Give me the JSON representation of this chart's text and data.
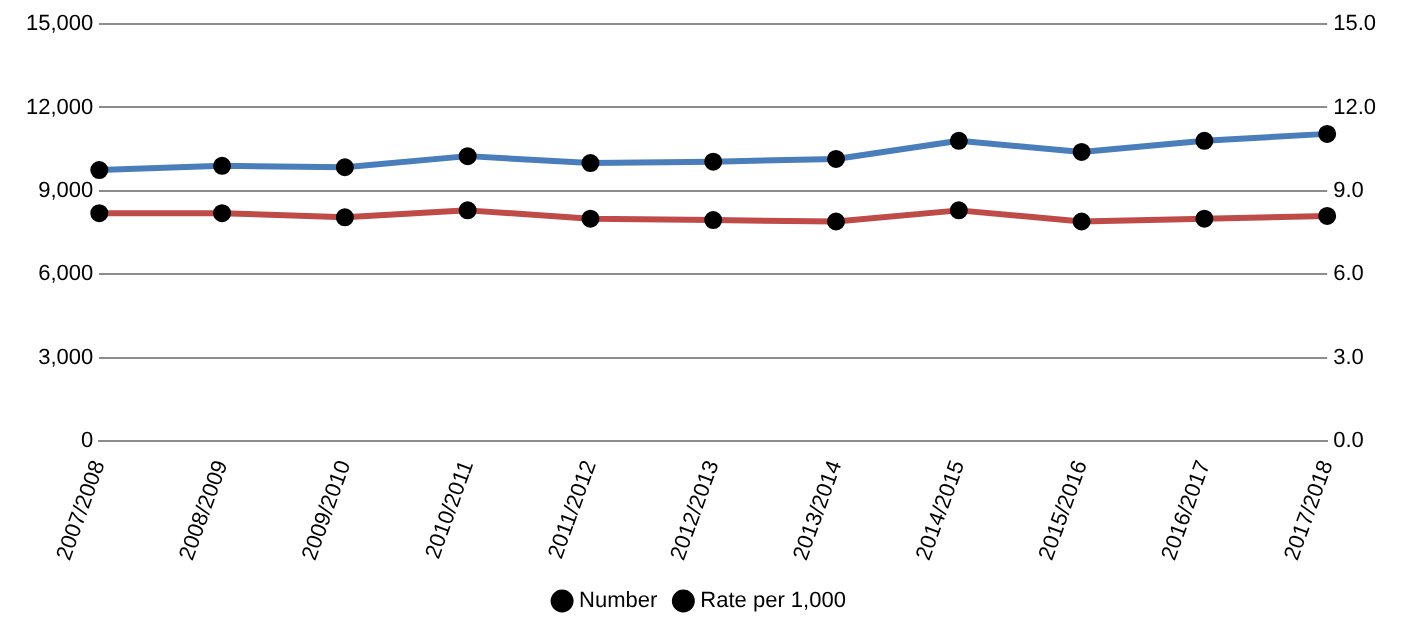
{
  "chart_data": {
    "type": "line",
    "categories": [
      "2007/2008",
      "2008/2009",
      "2009/2010",
      "2010/2011",
      "2011/2012",
      "2012/2013",
      "2013/2014",
      "2014/2015",
      "2015/2016",
      "2016/2017",
      "2017/2018"
    ],
    "series": [
      {
        "name": "Number",
        "color": "#4a7ebb",
        "values": [
          9750,
          9900,
          9850,
          10250,
          10000,
          10050,
          10150,
          10800,
          10400,
          10800,
          11050
        ]
      },
      {
        "name": "Rate per 1,000",
        "color": "#be4b48",
        "axis": "y2",
        "values": [
          8.2,
          8.2,
          8.05,
          8.3,
          8.0,
          7.95,
          7.9,
          8.3,
          7.9,
          8.0,
          8.1
        ]
      }
    ],
    "ylim": [
      0,
      15000
    ],
    "yticks": [
      {
        "value": 0,
        "label": "0"
      },
      {
        "value": 3000,
        "label": "3,000"
      },
      {
        "value": 6000,
        "label": "6,000"
      },
      {
        "value": 9000,
        "label": "9,000"
      },
      {
        "value": 12000,
        "label": "12,000"
      },
      {
        "value": 15000,
        "label": "15,000"
      }
    ],
    "y2lim": [
      0,
      15
    ],
    "y2ticks": [
      {
        "value": 0,
        "label": "0.0"
      },
      {
        "value": 3,
        "label": "3.0"
      },
      {
        "value": 6,
        "label": "6.0"
      },
      {
        "value": 9,
        "label": "9.0"
      },
      {
        "value": 12,
        "label": "12.0"
      },
      {
        "value": 15,
        "label": "15.0"
      }
    ],
    "grid": "y",
    "legend": "bottom",
    "marker": "circle",
    "line_style": "solid"
  }
}
